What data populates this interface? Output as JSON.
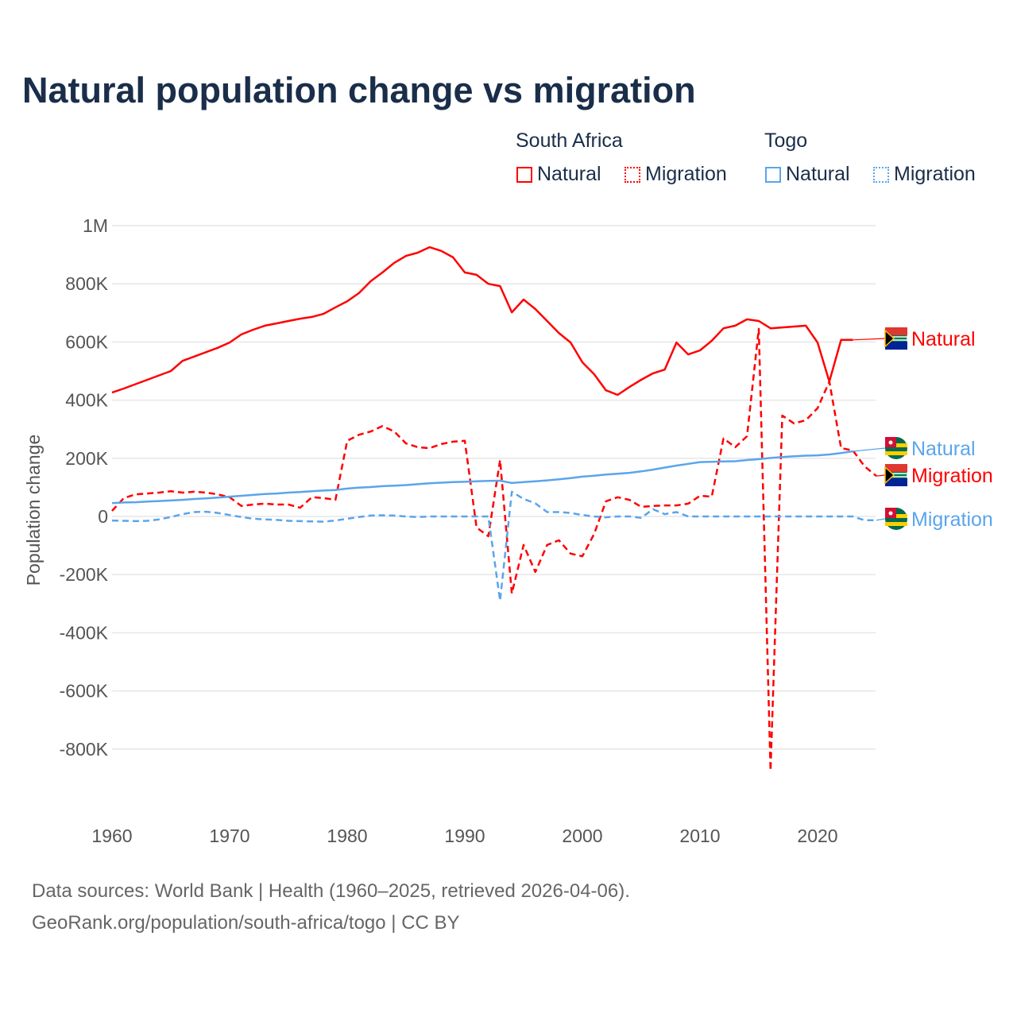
{
  "title": "Natural population change vs migration",
  "legend": {
    "group1": "South Africa",
    "group2": "Togo",
    "natural": "Natural",
    "migration": "Migration"
  },
  "footer": {
    "line1": "Data sources: World Bank | Health (1960–2025, retrieved 2026-04-06).",
    "line2": "GeoRank.org/population/south-africa/togo | CC BY"
  },
  "colors": {
    "south_africa": "#ff0000",
    "togo": "#5aa5ec"
  },
  "chart_data": {
    "type": "line",
    "title": "Natural population change vs migration",
    "xlabel": "",
    "ylabel": "Population change",
    "xlim": [
      1960,
      2025
    ],
    "ylim": [
      -1000000,
      1000000
    ],
    "yticks": [
      {
        "v": 1000,
        "t": "1M"
      },
      {
        "v": 800,
        "t": "800K"
      },
      {
        "v": 600,
        "t": "600K"
      },
      {
        "v": 400,
        "t": "400K"
      },
      {
        "v": 200,
        "t": "200K"
      },
      {
        "v": 0,
        "t": "0"
      },
      {
        "v": -200,
        "t": "-200K"
      },
      {
        "v": -400,
        "t": "-400K"
      },
      {
        "v": -600,
        "t": "-600K"
      },
      {
        "v": -800,
        "t": "-800K"
      }
    ],
    "xticks": [
      1960,
      1970,
      1980,
      1990,
      2000,
      2010,
      2020
    ],
    "units": "thousands",
    "series": [
      {
        "name": "South Africa Natural",
        "label": "Natural",
        "color": "#ff0000",
        "dash": false,
        "start": 1960,
        "values": [
          426,
          440,
          455,
          470,
          485,
          500,
          535,
          550,
          565,
          580,
          598,
          626,
          642,
          656,
          664,
          672,
          680,
          686,
          697,
          719,
          740,
          768,
          809,
          839,
          872,
          896,
          907,
          926,
          913,
          891,
          839,
          831,
          800,
          792,
          702,
          746,
          713,
          672,
          631,
          598,
          530,
          489,
          434,
          418,
          445,
          470,
          492,
          505,
          598,
          557,
          571,
          604,
          647,
          656,
          678,
          672,
          647,
          650,
          653,
          656,
          598,
          464,
          607,
          607
        ]
      },
      {
        "name": "South Africa Migration",
        "label": "Migration",
        "color": "#ff0000",
        "dash": true,
        "start": 1960,
        "values": [
          19,
          63,
          76,
          79,
          82,
          87,
          82,
          85,
          82,
          76,
          66,
          36,
          41,
          44,
          41,
          41,
          30,
          66,
          63,
          57,
          260,
          281,
          292,
          311,
          292,
          251,
          238,
          235,
          249,
          257,
          260,
          -38,
          -68,
          194,
          -265,
          -98,
          -191,
          -98,
          -82,
          -128,
          -137,
          -60,
          52,
          66,
          57,
          33,
          36,
          38,
          38,
          44,
          71,
          68,
          268,
          238,
          276,
          645,
          -874,
          347,
          320,
          331,
          372,
          464,
          235,
          227,
          172,
          139
        ]
      },
      {
        "name": "Togo Natural",
        "label": "Natural",
        "color": "#5aa5ec",
        "dash": false,
        "start": 1960,
        "values": [
          46,
          48,
          49,
          51,
          53,
          55,
          57,
          60,
          62,
          65,
          68,
          71,
          74,
          77,
          79,
          82,
          84,
          87,
          89,
          91,
          96,
          99,
          101,
          104,
          106,
          108,
          111,
          114,
          116,
          118,
          119,
          121,
          122,
          123,
          115,
          118,
          121,
          124,
          128,
          132,
          137,
          140,
          144,
          147,
          150,
          155,
          161,
          168,
          175,
          181,
          187,
          188,
          189,
          190,
          194,
          197,
          201,
          204,
          207,
          209,
          210,
          213,
          218,
          224
        ]
      },
      {
        "name": "Togo Migration",
        "label": "Migration",
        "color": "#5aa5ec",
        "dash": true,
        "start": 1960,
        "values": [
          -14,
          -15,
          -16,
          -15,
          -10,
          -2,
          8,
          15,
          16,
          12,
          5,
          -2,
          -8,
          -10,
          -12,
          -15,
          -16,
          -17,
          -18,
          -14,
          -8,
          -2,
          3,
          4,
          3,
          0,
          -2,
          0,
          0,
          0,
          0,
          0,
          0,
          -290,
          85,
          60,
          45,
          15,
          15,
          12,
          5,
          0,
          -3,
          0,
          0,
          -5,
          25,
          8,
          15,
          0,
          0,
          0,
          0,
          0,
          0,
          0,
          0,
          0,
          0,
          0,
          0,
          0,
          0,
          0,
          -13,
          -13
        ]
      }
    ]
  }
}
